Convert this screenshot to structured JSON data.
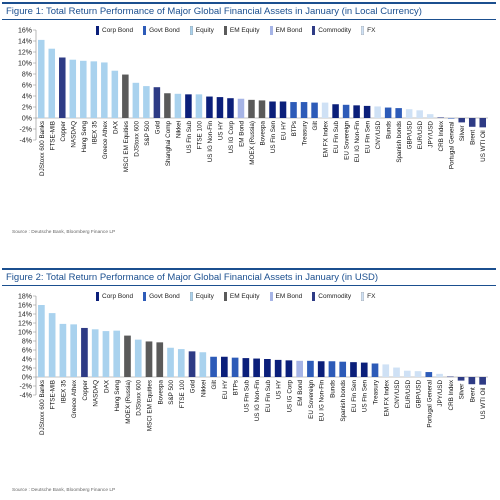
{
  "figures": [
    {
      "title": "Figure 1: Total Return Performance of Major Global Financial Assets in January (in Local Currency)",
      "source": "Source : Deutsche Bank, Bloomberg Finance LP",
      "legend": [
        {
          "key": "corp",
          "label": "Corp Bond"
        },
        {
          "key": "govt",
          "label": "Govt Bond"
        },
        {
          "key": "equity",
          "label": "Equity"
        },
        {
          "key": "em_equity",
          "label": "EM Equity"
        },
        {
          "key": "em_bond",
          "label": "EM Bond"
        },
        {
          "key": "commodity",
          "label": "Commodity"
        },
        {
          "key": "fx",
          "label": "FX"
        }
      ],
      "chart_data": {
        "type": "bar",
        "ylim": [
          -4,
          16
        ],
        "yticks": [
          -4,
          -2,
          0,
          2,
          4,
          6,
          8,
          10,
          12,
          14,
          16
        ],
        "ytick_format": "percent",
        "grid": false,
        "legend_position": "top",
        "categories": [
          "DJStoxx 600 Banks",
          "FTSE-MIB",
          "Copper",
          "NASDAQ",
          "Hang Seng",
          "IBEX 35",
          "Greece Athex",
          "DAX",
          "MSCI EM Equities",
          "DJStoxx 600",
          "S&P 500",
          "Gold",
          "Shanghai Comp",
          "Nikkei",
          "US Fin Sub",
          "FTSE 100",
          "US IG Non-Fin",
          "US HY",
          "US IG Corp",
          "EM Bond",
          "MOEX (Russia)",
          "Bovespa",
          "US Fin Sen",
          "EU HY",
          "BTPs",
          "Treasury",
          "Gilt",
          "EM FX Index",
          "EU Fin Sub",
          "EU Sovereign",
          "EU IG Non-Fin",
          "EU Fin Sen",
          "CNY/USD",
          "Bunds",
          "Spanish bonds",
          "GBP/USD",
          "EUR/USD",
          "JPY/USD",
          "CRB Index",
          "Portugal General",
          "Silver",
          "Brent",
          "US WTI Oil"
        ],
        "values": [
          14.2,
          12.6,
          11.0,
          10.6,
          10.4,
          10.3,
          10.1,
          8.6,
          7.9,
          6.4,
          5.8,
          5.6,
          4.5,
          4.4,
          4.3,
          4.3,
          3.9,
          3.8,
          3.6,
          3.5,
          3.3,
          3.2,
          3.0,
          3.0,
          2.9,
          2.9,
          2.8,
          2.8,
          2.5,
          2.4,
          2.3,
          2.2,
          2.1,
          1.9,
          1.8,
          1.6,
          1.4,
          0.7,
          0.1,
          -0.1,
          -0.8,
          -1.6,
          -1.7
        ],
        "groups": [
          "equity",
          "equity",
          "commodity",
          "equity",
          "equity",
          "equity",
          "equity",
          "equity",
          "em_equity",
          "equity",
          "equity",
          "commodity",
          "em_equity",
          "equity",
          "corp",
          "equity",
          "corp",
          "corp",
          "corp",
          "em_bond",
          "em_equity",
          "em_equity",
          "corp",
          "corp",
          "govt",
          "govt",
          "govt",
          "fx",
          "corp",
          "govt",
          "corp",
          "corp",
          "fx",
          "govt",
          "govt",
          "fx",
          "fx",
          "fx",
          "commodity",
          "govt",
          "commodity",
          "commodity",
          "commodity"
        ]
      }
    },
    {
      "title": "Figure 2: Total Return Performance of Major Global Financial Assets in January (in USD)",
      "source": "Source : Deutsche Bank, Bloomberg Finance LP",
      "legend": [
        {
          "key": "corp",
          "label": "Corp Bond"
        },
        {
          "key": "govt",
          "label": "Govt Bond"
        },
        {
          "key": "equity",
          "label": "Equity"
        },
        {
          "key": "em_equity",
          "label": "EM Equity"
        },
        {
          "key": "em_bond",
          "label": "EM Bond"
        },
        {
          "key": "commodity",
          "label": "Commodity"
        },
        {
          "key": "fx",
          "label": "FX"
        }
      ],
      "chart_data": {
        "type": "bar",
        "ylim": [
          -4,
          18
        ],
        "yticks": [
          -4,
          -2,
          0,
          2,
          4,
          6,
          8,
          10,
          12,
          14,
          16,
          18
        ],
        "ytick_format": "percent",
        "grid": false,
        "legend_position": "top",
        "categories": [
          "DJStoxx 600 Banks",
          "FTSE-MIB",
          "IBEX 35",
          "Greece Athex",
          "Copper",
          "NASDAQ",
          "DAX",
          "Hang Seng",
          "MOEX (Russia)",
          "DJStoxx 600",
          "MSCI EM Equities",
          "Bovespa",
          "S&P 500",
          "FTSE 100",
          "Gold",
          "Nikkei",
          "Gilt",
          "EU HY",
          "BTPs",
          "US Fin Sub",
          "US IG Non-Fin",
          "EU Fin Sub",
          "US HY",
          "US IG Corp",
          "EM Bond",
          "EU Sovereign",
          "EU IG Non-Fin",
          "Bunds",
          "Spanish bonds",
          "EU Fin Sen",
          "US Fin Sen",
          "Treasury",
          "EM FX Index",
          "CNY/USD",
          "EUR/USD",
          "GBP/USD",
          "Portugal General",
          "JPY/USD",
          "CRB Index",
          "Silver",
          "Brent",
          "US WTI Oil"
        ],
        "values": [
          16.0,
          14.2,
          11.8,
          11.7,
          10.9,
          10.6,
          10.2,
          10.3,
          9.2,
          8.3,
          7.9,
          7.7,
          6.5,
          6.2,
          5.7,
          5.5,
          4.5,
          4.5,
          4.3,
          4.2,
          4.1,
          4.0,
          3.8,
          3.7,
          3.6,
          3.6,
          3.5,
          3.5,
          3.4,
          3.3,
          3.2,
          3.0,
          2.8,
          2.1,
          1.4,
          1.3,
          1.1,
          0.7,
          0.1,
          -0.8,
          -1.6,
          -1.7
        ],
        "groups": [
          "equity",
          "equity",
          "equity",
          "equity",
          "commodity",
          "equity",
          "equity",
          "equity",
          "em_equity",
          "equity",
          "em_equity",
          "em_equity",
          "equity",
          "equity",
          "commodity",
          "equity",
          "govt",
          "corp",
          "govt",
          "corp",
          "corp",
          "corp",
          "corp",
          "corp",
          "em_bond",
          "govt",
          "corp",
          "govt",
          "govt",
          "corp",
          "corp",
          "govt",
          "fx",
          "fx",
          "fx",
          "fx",
          "govt",
          "fx",
          "commodity",
          "commodity",
          "commodity",
          "commodity"
        ]
      }
    }
  ],
  "colors": {
    "corp": "#0b1f7a",
    "govt": "#2d5bb8",
    "equity": "#a9d2ee",
    "em_equity": "#5a5a5a",
    "em_bond": "#a6b4e6",
    "commodity": "#2e3b85",
    "fx": "#cfe1f5",
    "axis": "#888888",
    "header": "#1b4f8f"
  }
}
